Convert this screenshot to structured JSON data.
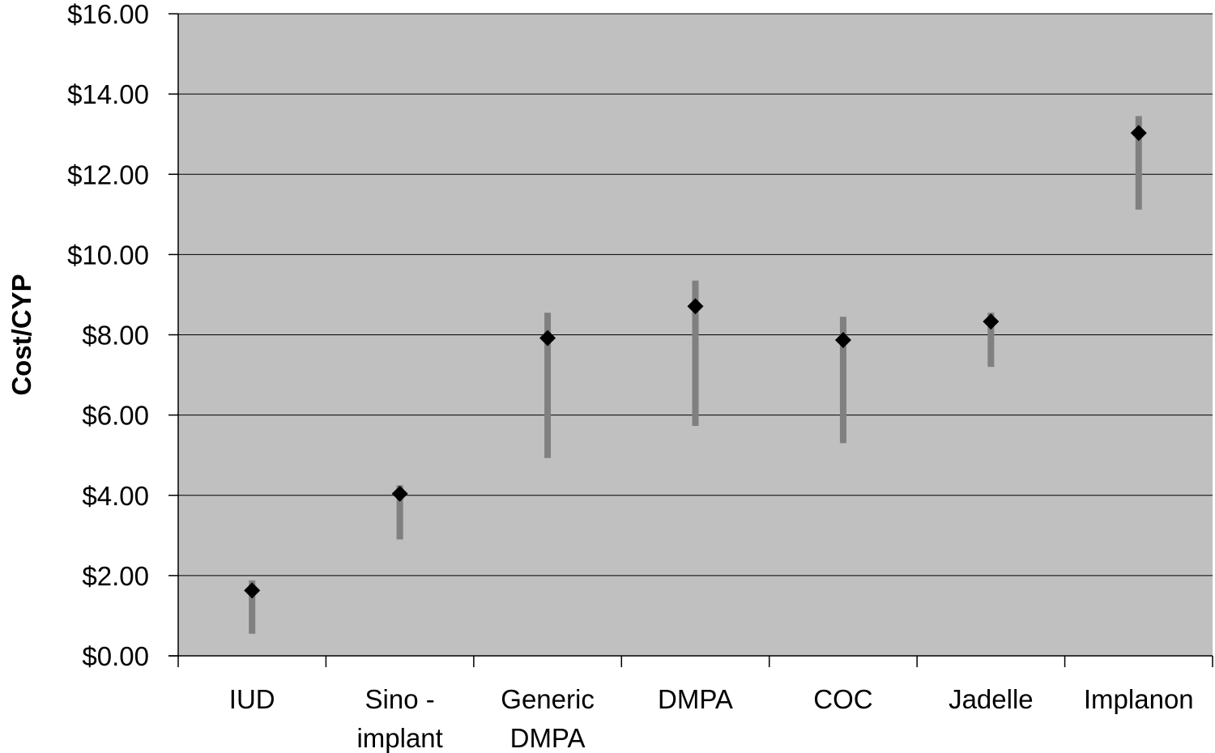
{
  "chart_data": {
    "type": "scatter",
    "title": "",
    "xlabel": "",
    "ylabel": "Cost/CYP",
    "ylim": [
      0,
      16
    ],
    "ytick_values": [
      0,
      2,
      4,
      6,
      8,
      10,
      12,
      14,
      16
    ],
    "ytick_labels": [
      "$0.00",
      "$2.00",
      "$4.00",
      "$6.00",
      "$8.00",
      "$10.00",
      "$12.00",
      "$14.00",
      "$16.00"
    ],
    "grid": true,
    "legend": "none",
    "categories": [
      [
        "IUD"
      ],
      [
        "Sino -",
        "implant"
      ],
      [
        "Generic",
        "DMPA"
      ],
      [
        "DMPA"
      ],
      [
        "COC"
      ],
      [
        "Jadelle"
      ],
      [
        "Implanon"
      ]
    ],
    "series": [
      {
        "values": [
          1.63,
          4.04,
          7.92,
          8.71,
          7.87,
          8.33,
          13.03
        ],
        "range_low": [
          0.55,
          2.9,
          4.93,
          5.73,
          5.3,
          7.2,
          11.12
        ],
        "range_high": [
          1.88,
          4.25,
          8.55,
          9.35,
          8.45,
          8.55,
          13.45
        ]
      }
    ],
    "colors": {
      "plot_background": "#c0c0c0",
      "range_bar": "#808080",
      "marker": "#000000",
      "gridline": "#000000"
    }
  }
}
